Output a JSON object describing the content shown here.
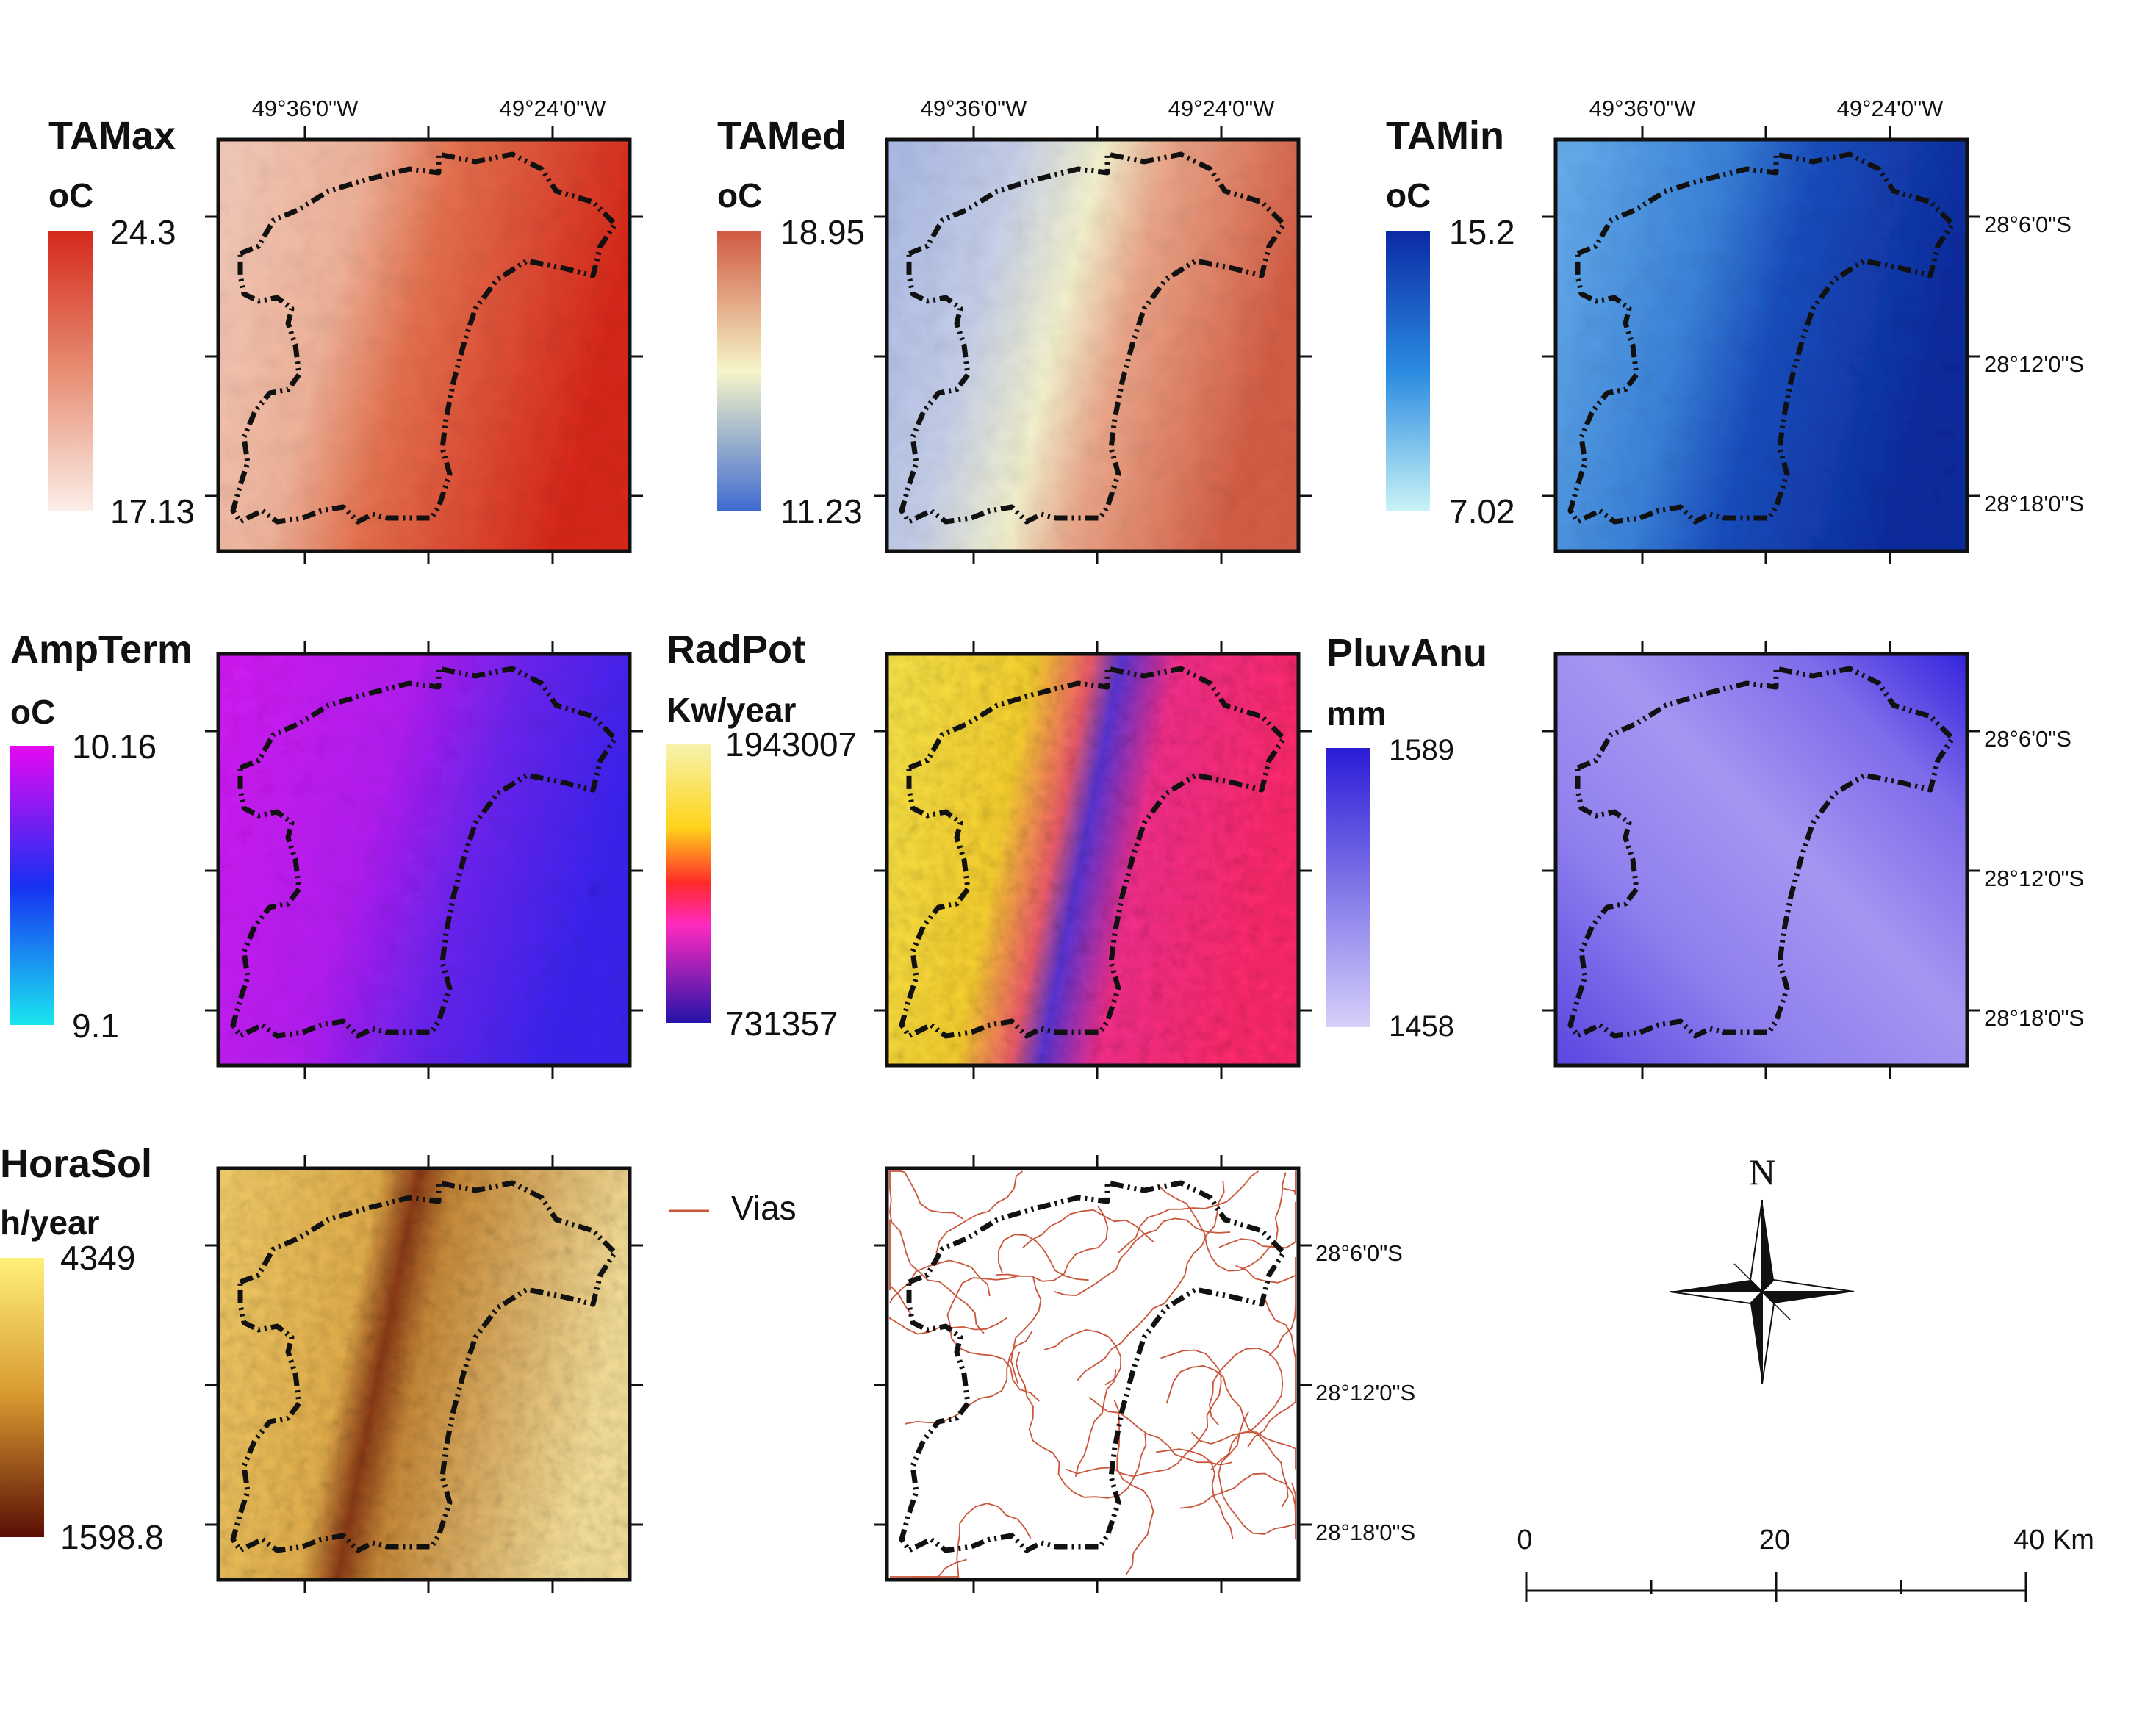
{
  "panels": [
    {
      "id": "tamax",
      "title": "TAMax",
      "unit": "oC",
      "max": "24.3",
      "min": "17.13",
      "max_color": "#d42a1c",
      "min_color": "#fbeee8"
    },
    {
      "id": "tamed",
      "title": "TAMed",
      "unit": "oC",
      "max": "18.95",
      "min": "11.23",
      "max_color": "#d05a43",
      "mid_color": "#f6f5c8",
      "min_color": "#3f6bd1"
    },
    {
      "id": "tamin",
      "title": "TAMin",
      "unit": "oC",
      "max": "15.2",
      "min": "7.02",
      "max_color": "#0b2aa4",
      "mid_color": "#2a8ae0",
      "min_color": "#c8f3f6"
    },
    {
      "id": "ampterm",
      "title": "AmpTerm",
      "unit": "oC",
      "max": "10.16",
      "min": "9.1",
      "max_color": "#e609f2",
      "mid_color": "#1830f2",
      "min_color": "#1be6ef"
    },
    {
      "id": "radpot",
      "title": "RadPot",
      "unit": "Kw/year",
      "max": "1943007",
      "min": "731357",
      "max_color": "#f6f3b0",
      "mid_color": "#ff2a7a",
      "min_color": "#2413a8"
    },
    {
      "id": "pluvanu",
      "title": "PluvAnu",
      "unit": "mm",
      "max": "1589",
      "min": "1458",
      "max_color": "#2a1cd6",
      "min_color": "#d6d0fa"
    },
    {
      "id": "horasol",
      "title": "HoraSol",
      "unit": "h/year",
      "max": "4349",
      "min": "1598.8",
      "max_color": "#fff07a",
      "mid_color": "#d7972f",
      "min_color": "#5a0f05"
    }
  ],
  "longitude_labels": [
    "49°36'0\"W",
    "49°24'0\"W"
  ],
  "latitude_labels": [
    "28°6'0\"S",
    "28°12'0\"S",
    "28°18'0\"S"
  ],
  "roads_legend": {
    "label": "Vias",
    "color": "#c8563a"
  },
  "north_arrow": {
    "label": "N"
  },
  "scale_bar": {
    "labels": [
      "0",
      "20",
      "40 Km"
    ]
  }
}
